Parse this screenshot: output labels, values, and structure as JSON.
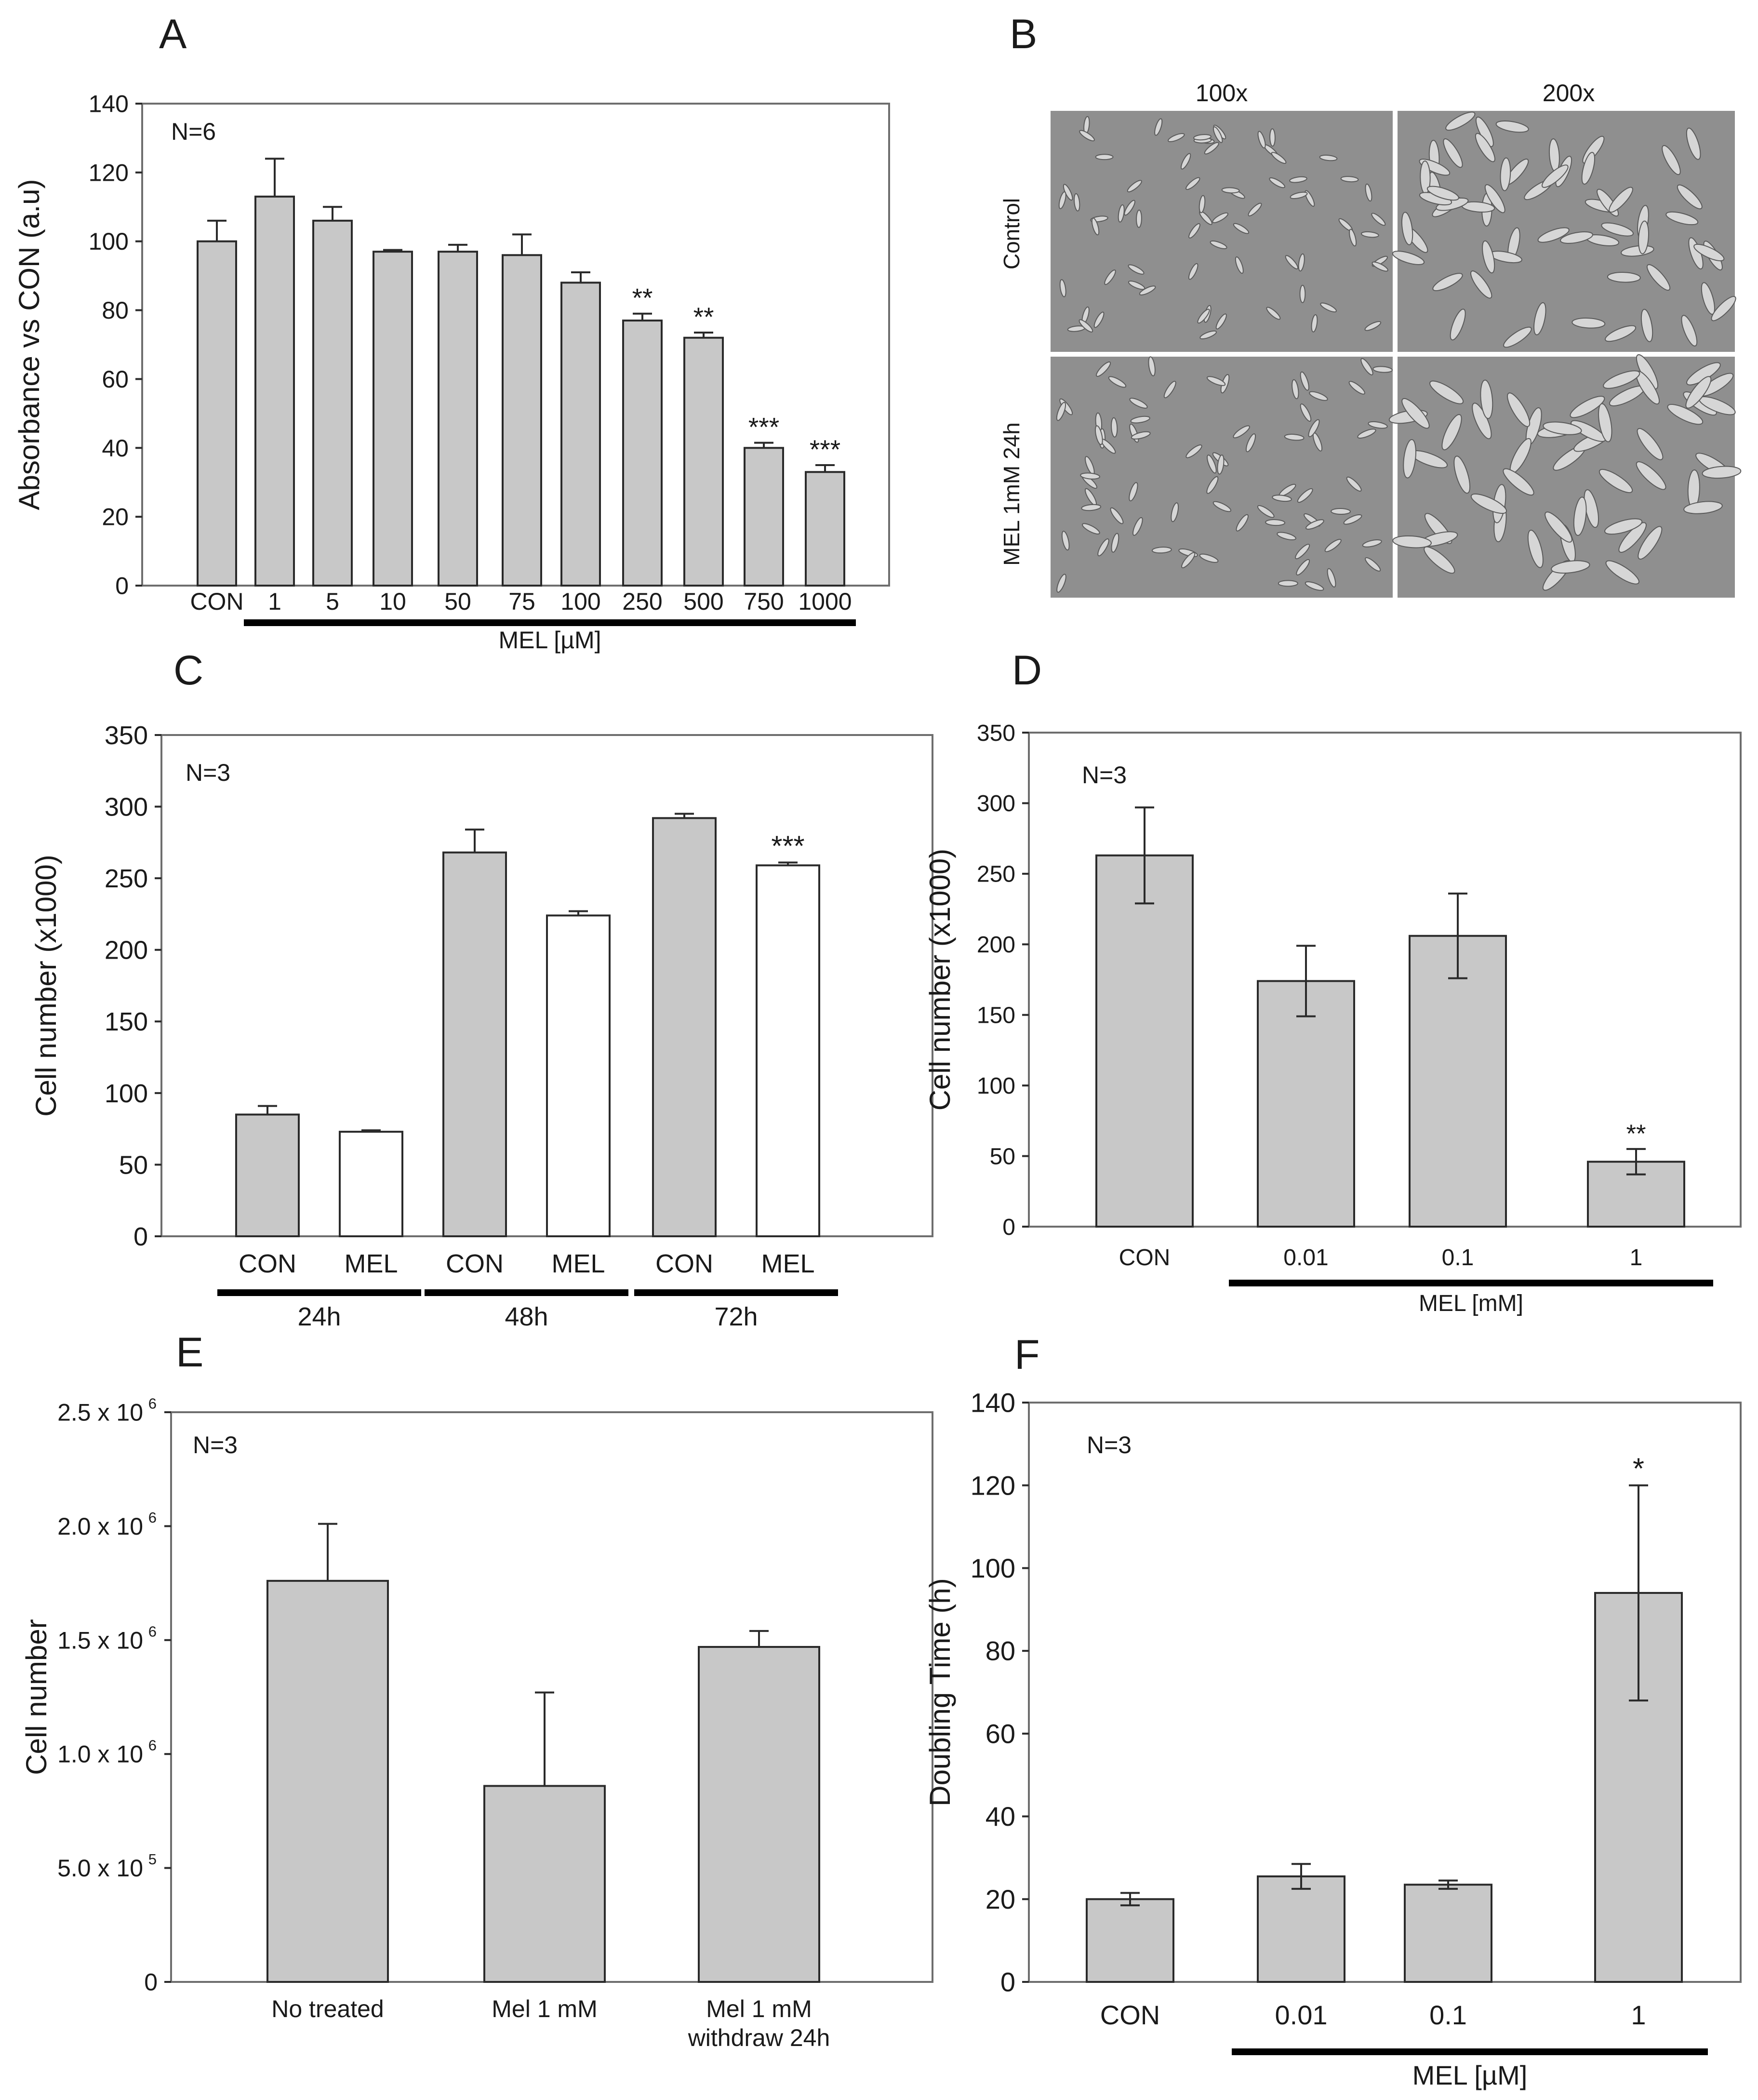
{
  "colors": {
    "bar_fill": "#c8c8c8",
    "bar_open": "#ffffff",
    "frame": "#6e6e6e",
    "text": "#1a1a1a",
    "micrograph": "#8f8f8f"
  },
  "micrograph_panel": {
    "letter": "B",
    "col_labels": [
      "100x",
      "200x"
    ],
    "row_labels": [
      "Control",
      "MEL 1mM 24h"
    ]
  },
  "chart_data": [
    {
      "panel": "A",
      "type": "bar",
      "ylabel": "Absorbance vs CON (a.u)",
      "ylim": [
        0,
        140
      ],
      "yticks": [
        "0",
        "20",
        "40",
        "60",
        "80",
        "100",
        "120",
        "140"
      ],
      "n_label": "N=6",
      "categories": [
        "CON",
        "1",
        "5",
        "10",
        "50",
        "75",
        "100",
        "250",
        "500",
        "750",
        "1000"
      ],
      "values": [
        100,
        113,
        106,
        97,
        97,
        96,
        88,
        77,
        72,
        40,
        33
      ],
      "errors": [
        6,
        11,
        4,
        0.5,
        2,
        6,
        3,
        2,
        1.5,
        1.5,
        2
      ],
      "significance": [
        "",
        "",
        "",
        "",
        "",
        "",
        "",
        "**",
        "**",
        "***",
        "***"
      ],
      "fills": [
        "g",
        "g",
        "g",
        "g",
        "g",
        "g",
        "g",
        "g",
        "g",
        "g",
        "g"
      ],
      "group_labels": [
        {
          "text": "MEL [µM]",
          "from": 1,
          "to": 10
        }
      ]
    },
    {
      "panel": "C",
      "type": "bar",
      "ylabel": "Cell number (x1000)",
      "ylim": [
        0,
        350
      ],
      "yticks": [
        "0",
        "50",
        "100",
        "150",
        "200",
        "250",
        "300",
        "350"
      ],
      "n_label": "N=3",
      "categories": [
        "CON",
        "MEL",
        "CON",
        "MEL",
        "CON",
        "MEL"
      ],
      "values": [
        85,
        73,
        268,
        224,
        292,
        259
      ],
      "errors": [
        6,
        1,
        16,
        3,
        3,
        2
      ],
      "significance": [
        "",
        "",
        "",
        "",
        "",
        "***"
      ],
      "fills": [
        "g",
        "w",
        "g",
        "w",
        "g",
        "w"
      ],
      "group_labels": [
        {
          "text": "24h",
          "from": 0,
          "to": 1
        },
        {
          "text": "48h",
          "from": 2,
          "to": 3
        },
        {
          "text": "72h",
          "from": 4,
          "to": 5
        }
      ]
    },
    {
      "panel": "D",
      "type": "bar",
      "ylabel": "Cell number (x1000)",
      "ylim": [
        0,
        350
      ],
      "yticks": [
        "0",
        "50",
        "100",
        "150",
        "200",
        "250",
        "300",
        "350"
      ],
      "n_label": "N=3",
      "categories": [
        "CON",
        "0.01",
        "0.1",
        "1"
      ],
      "values": [
        263,
        174,
        206,
        46
      ],
      "errors": [
        34,
        25,
        30,
        9
      ],
      "significance": [
        "",
        "",
        "",
        "**"
      ],
      "fills": [
        "g",
        "g",
        "g",
        "g"
      ],
      "group_labels": [
        {
          "text": "MEL [mM]",
          "from": 1,
          "to": 3
        }
      ]
    },
    {
      "panel": "E",
      "type": "bar",
      "ylabel": "Cell number",
      "ylim": [
        0,
        2500000
      ],
      "yticks": [
        "0",
        "5.0 x 10",
        "1.0 x 10",
        "1.5 x 10",
        "2.0 x 10",
        "2.5 x 10"
      ],
      "ytick_exponents": [
        "",
        "5",
        "6",
        "6",
        "6",
        "6"
      ],
      "n_label": "N=3",
      "categories": [
        "No treated",
        "Mel 1 mM",
        "Mel 1 mM"
      ],
      "category_sublabels": [
        "",
        "",
        "withdraw 24h"
      ],
      "values": [
        1760000,
        860000,
        1470000
      ],
      "errors": [
        250000,
        410000,
        70000
      ],
      "significance": [
        "",
        "",
        ""
      ],
      "fills": [
        "g",
        "g",
        "g"
      ],
      "group_labels": []
    },
    {
      "panel": "F",
      "type": "bar",
      "ylabel": "Doubling Time (h)",
      "ylim": [
        0,
        140
      ],
      "yticks": [
        "0",
        "20",
        "40",
        "60",
        "80",
        "100",
        "120",
        "140"
      ],
      "n_label": "N=3",
      "categories": [
        "CON",
        "0.01",
        "0.1",
        "1"
      ],
      "values": [
        20,
        25.5,
        23.5,
        94
      ],
      "errors": [
        1.5,
        3,
        1,
        26
      ],
      "significance": [
        "",
        "",
        "",
        "*"
      ],
      "fills": [
        "g",
        "g",
        "g",
        "g"
      ],
      "group_labels": [
        {
          "text": "MEL [µM]",
          "from": 1,
          "to": 3
        }
      ]
    }
  ]
}
